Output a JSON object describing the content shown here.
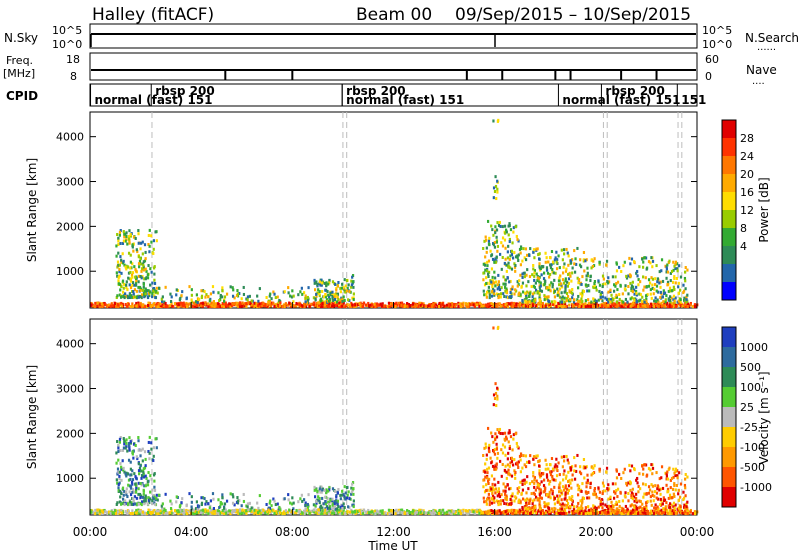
{
  "header": {
    "station": "Halley  (fitACF)",
    "beam_label": "Beam 00",
    "date_range": "09/Sep/2015 – 10/Sep/2015"
  },
  "strip_panels": {
    "nsky_label": "N.Sky",
    "nsearch_label": "N.Search",
    "freq_label_1": "Freq.",
    "freq_label_2": "[MHz]",
    "nave_label": "Nave",
    "cpid_label": "CPID",
    "ticks_left_top": [
      "10^5",
      "10^0"
    ],
    "ticks_right_top": [
      "10^5",
      "10^0"
    ],
    "ticks_left_mid": [
      "18",
      "8"
    ],
    "ticks_right_mid": [
      "60",
      "0"
    ],
    "legend_dots": "......",
    "legend_dots_short": "...."
  },
  "cpid_labels": [
    {
      "text": "normal (fast) 151",
      "hour": 0.1,
      "row": 2
    },
    {
      "text": "rbsp 200",
      "hour": 2.5,
      "row": 1
    },
    {
      "text": "rbsp 200",
      "hour": 10.05,
      "row": 1
    },
    {
      "text": "normal (fast)  151",
      "hour": 10.05,
      "row": 2
    },
    {
      "text": "normal (fast) 151",
      "hour": 18.6,
      "row": 2
    },
    {
      "text": "rbsp 200",
      "hour": 20.3,
      "row": 1
    },
    {
      "text": "151",
      "hour": 23.3,
      "row": 2
    }
  ],
  "chart_data": [
    {
      "type": "heatmap",
      "name": "Power",
      "ylabel": "Slant Range [km]",
      "xlim_hours": [
        0,
        24
      ],
      "ylim": [
        180,
        4550
      ],
      "yticks": [
        1000,
        2000,
        3000,
        4000
      ],
      "colorbar_label": "Power [dB]",
      "colorbar_ticks": [
        "28",
        "24",
        "20",
        "16",
        "12",
        "8",
        "4"
      ],
      "colorbar_colors": [
        "#e00000",
        "#ff3300",
        "#ff7700",
        "#ffaa00",
        "#ffdd00",
        "#99cc00",
        "#33aa33",
        "#2e8b57",
        "#2266aa",
        "#0000ff"
      ]
    },
    {
      "type": "heatmap",
      "name": "Velocity",
      "ylabel": "Slant Range [km]",
      "xlabel": "Time UT",
      "xlim_hours": [
        0,
        24
      ],
      "ylim": [
        180,
        4550
      ],
      "yticks": [
        1000,
        2000,
        3000,
        4000
      ],
      "xticks": [
        "00:00",
        "04:00",
        "08:00",
        "12:00",
        "16:00",
        "20:00",
        "00:00"
      ],
      "colorbar_label": "Velocity [m s⁻¹]",
      "colorbar_ticks": [
        "1000",
        "500",
        "100",
        "25",
        "-25",
        "-100",
        "-500",
        "-1000"
      ],
      "colorbar_colors": [
        "#1f3fbf",
        "#2e6b9e",
        "#2e8b57",
        "#55cc33",
        "#bbbbbb",
        "#ffcc00",
        "#ff9900",
        "#ff5500",
        "#e00000"
      ]
    }
  ],
  "dashed_lines_hours": [
    2.45,
    10.0,
    10.15,
    20.3,
    20.45,
    23.25,
    23.4
  ]
}
